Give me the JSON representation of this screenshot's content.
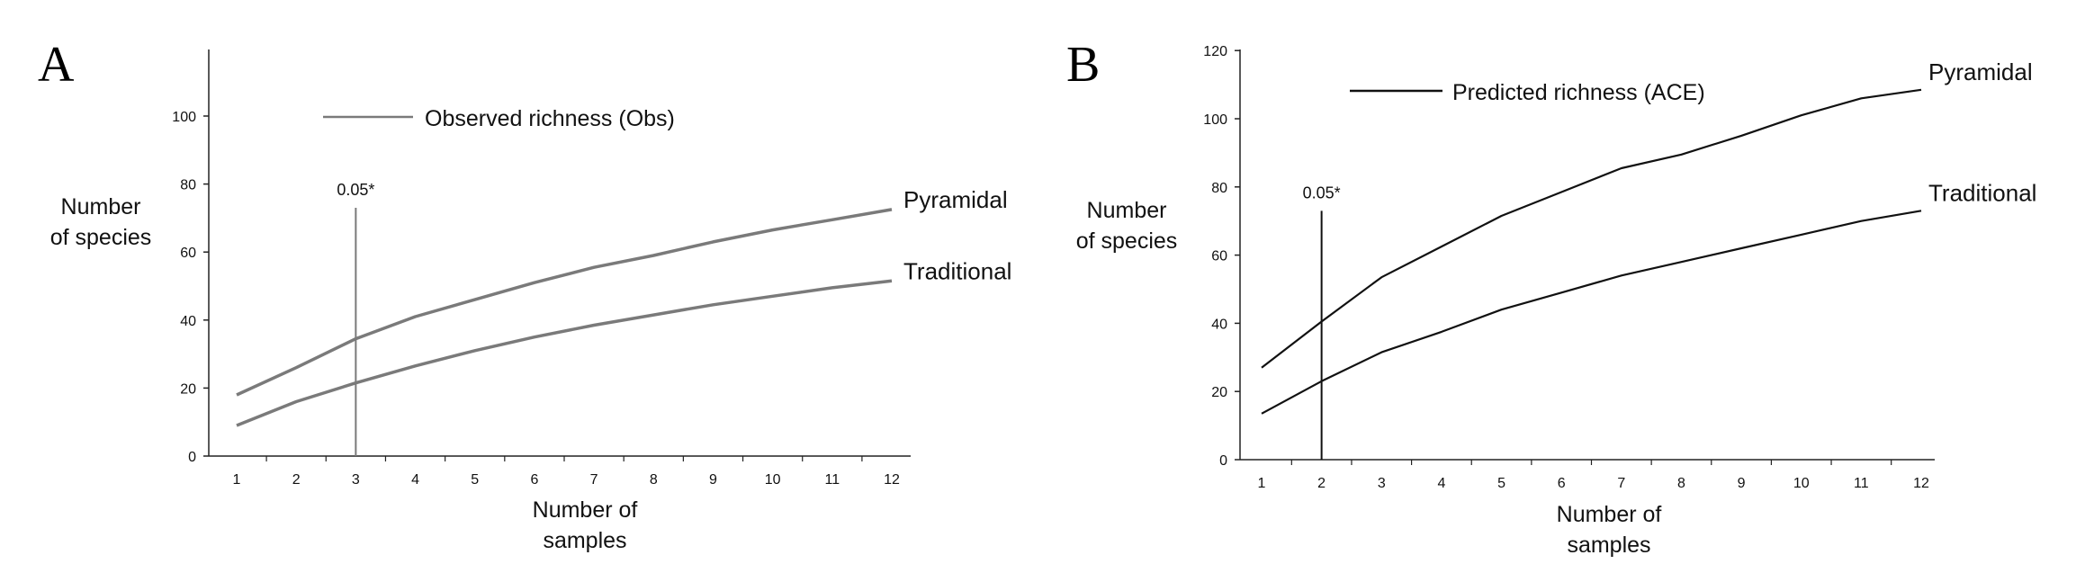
{
  "chart_data": [
    {
      "panel": "A",
      "type": "line",
      "x": [
        1,
        2,
        3,
        4,
        5,
        6,
        7,
        8,
        9,
        10,
        11,
        12
      ],
      "xlabel": [
        "Number of",
        "samples"
      ],
      "ylabel": [
        "Number",
        "of species"
      ],
      "ylim": [
        0,
        120
      ],
      "yticks": [
        0,
        20,
        40,
        60,
        80,
        100
      ],
      "xticks": [
        1,
        2,
        3,
        4,
        5,
        6,
        7,
        8,
        9,
        10,
        11,
        12
      ],
      "grid": false,
      "legend": {
        "label": "Observed richness (Obs)",
        "position": "top-center"
      },
      "color": "#7a7a7a",
      "series": [
        {
          "name": "Pyramidal",
          "values": [
            18,
            26,
            34.5,
            41,
            46,
            51,
            55.5,
            59,
            63,
            66.5,
            69.5,
            72.5
          ]
        },
        {
          "name": "Traditional",
          "values": [
            9,
            16,
            21.5,
            26.5,
            31,
            35,
            38.5,
            41.5,
            44.5,
            47,
            49.5,
            51.5
          ]
        }
      ],
      "annotation": {
        "x": 3,
        "y": 73,
        "label": "0.05*"
      }
    },
    {
      "panel": "B",
      "type": "line",
      "x": [
        1,
        2,
        3,
        4,
        5,
        6,
        7,
        8,
        9,
        10,
        11,
        12
      ],
      "xlabel": [
        "Number of",
        "samples"
      ],
      "ylabel": [
        "Number",
        "of species"
      ],
      "ylim": [
        0,
        120
      ],
      "yticks": [
        0,
        20,
        40,
        60,
        80,
        100,
        120
      ],
      "xticks": [
        1,
        2,
        3,
        4,
        5,
        6,
        7,
        8,
        9,
        10,
        11,
        12
      ],
      "grid": false,
      "legend": {
        "label": "Predicted richness (ACE)",
        "position": "top-center"
      },
      "color": "#111111",
      "series": [
        {
          "name": "Pyramidal",
          "values": [
            27,
            40.5,
            53.5,
            62.5,
            71.5,
            78.5,
            85.5,
            89.5,
            95,
            101,
            106,
            108.5
          ]
        },
        {
          "name": "Traditional",
          "values": [
            13.5,
            23,
            31.5,
            37.5,
            44,
            49,
            54,
            58,
            62,
            66,
            70,
            73
          ]
        }
      ],
      "annotation": {
        "x": 2,
        "y": 73,
        "label": "0.05*"
      }
    }
  ]
}
